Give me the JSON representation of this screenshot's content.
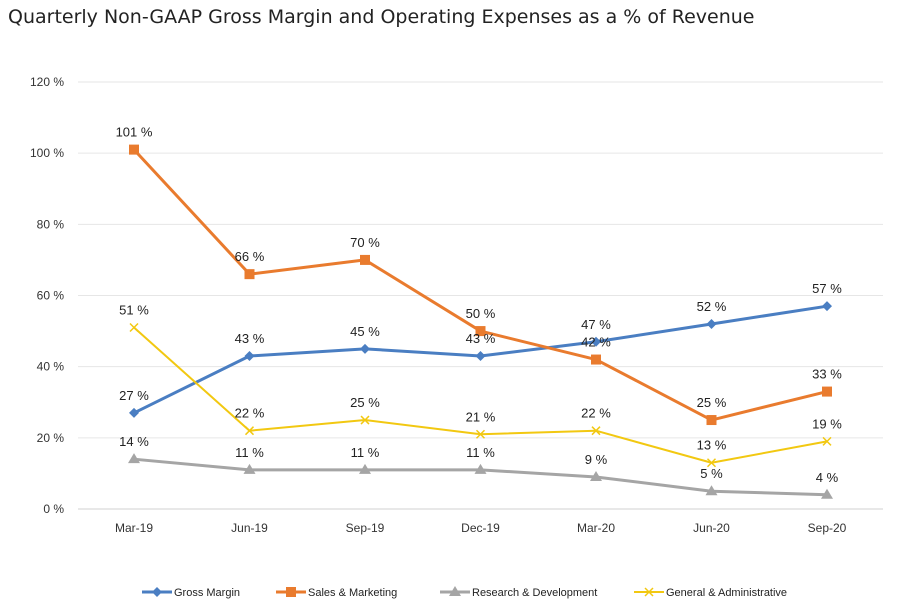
{
  "title": "Quarterly Non-GAAP Gross Margin and Operating Expenses as a % of Revenue",
  "chart_data": {
    "type": "line",
    "title": "Quarterly Non-GAAP Gross Margin and Operating Expenses as a % of Revenue",
    "categories": [
      "Mar-19",
      "Jun-19",
      "Sep-19",
      "Dec-19",
      "Mar-20",
      "Jun-20",
      "Sep-20"
    ],
    "ylim": [
      0,
      120
    ],
    "yticks": [
      0,
      20,
      40,
      60,
      80,
      100,
      120
    ],
    "ytick_labels": [
      "0 %",
      "20 %",
      "40 %",
      "60 %",
      "80 %",
      "100 %",
      "120 %"
    ],
    "grid": true,
    "legend_position": "bottom",
    "series": [
      {
        "name": "Gross Margin",
        "values": [
          27,
          43,
          45,
          43,
          47,
          52,
          57
        ],
        "labels": [
          "27 %",
          "43 %",
          "45 %",
          "43 %",
          "47 %",
          "52 %",
          "57 %"
        ],
        "color": "#4A7EC2",
        "marker": "diamond"
      },
      {
        "name": "Sales & Marketing",
        "values": [
          101,
          66,
          70,
          50,
          42,
          25,
          33
        ],
        "labels": [
          "101 %",
          "66 %",
          "70 %",
          "50 %",
          "42 %",
          "25 %",
          "33 %"
        ],
        "color": "#E97B2E",
        "marker": "square"
      },
      {
        "name": "Research & Development",
        "values": [
          14,
          11,
          11,
          11,
          9,
          5,
          4
        ],
        "labels": [
          "14 %",
          "11 %",
          "11 %",
          "11 %",
          "9 %",
          "5 %",
          "4 %"
        ],
        "color": "#A5A5A5",
        "marker": "triangle"
      },
      {
        "name": "General & Administrative",
        "values": [
          51,
          22,
          25,
          21,
          22,
          13,
          19
        ],
        "labels": [
          "51 %",
          "22 %",
          "25 %",
          "21 %",
          "22 %",
          "13 %",
          "19 %"
        ],
        "color": "#F2C811",
        "marker": "x"
      }
    ]
  }
}
